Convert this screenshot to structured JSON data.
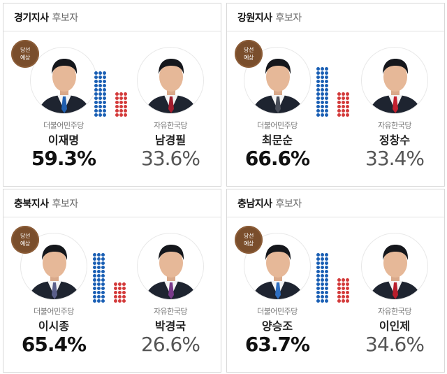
{
  "cards": [
    {
      "region": "경기지사",
      "subtitle": "후보자",
      "badge": [
        "당선",
        "예상"
      ],
      "winner": {
        "party": "더불어민주당",
        "name": "이재명",
        "pct": "59.3%",
        "tie": "#1f5fb0"
      },
      "loser": {
        "party": "자유한국당",
        "name": "남경필",
        "pct": "33.6%",
        "tie": "#a31d2e"
      },
      "bars": {
        "blue": 59.3,
        "red": 33.6
      }
    },
    {
      "region": "강원지사",
      "subtitle": "후보자",
      "badge": [
        "당선",
        "예상"
      ],
      "winner": {
        "party": "더불어민주당",
        "name": "최문순",
        "pct": "66.6%",
        "tie": "#4a4f5a"
      },
      "loser": {
        "party": "자유한국당",
        "name": "정창수",
        "pct": "33.4%",
        "tie": "#c4202f"
      },
      "bars": {
        "blue": 66.6,
        "red": 33.4
      }
    },
    {
      "region": "충북지사",
      "subtitle": "후보자",
      "badge": [
        "당선",
        "예상"
      ],
      "winner": {
        "party": "더불어민주당",
        "name": "이시종",
        "pct": "65.4%",
        "tie": "#5a5f8a"
      },
      "loser": {
        "party": "자유한국당",
        "name": "박경국",
        "pct": "26.6%",
        "tie": "#7a3a8a"
      },
      "bars": {
        "blue": 65.4,
        "red": 26.6
      }
    },
    {
      "region": "충남지사",
      "subtitle": "후보자",
      "badge": [
        "당선",
        "예상"
      ],
      "winner": {
        "party": "더불어민주당",
        "name": "양승조",
        "pct": "63.7%",
        "tie": "#2f6fc0"
      },
      "loser": {
        "party": "자유한국당",
        "name": "이인제",
        "pct": "34.6%",
        "tie": "#b81e2c"
      },
      "bars": {
        "blue": 63.7,
        "red": 34.6
      }
    }
  ],
  "colors": {
    "blue": "#1a5fb4",
    "red": "#d33a3a",
    "badge": "#7a4e2c"
  }
}
